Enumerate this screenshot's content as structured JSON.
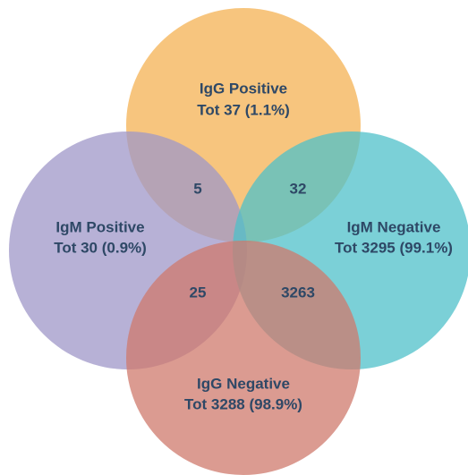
{
  "sets": [
    {
      "label": "IgG Positive",
      "total": "Tot 37 (1.1%)"
    },
    {
      "label": "IgM Positive",
      "total": "Tot 30 (0.9%)"
    },
    {
      "label": "IgM Negative",
      "total": "Tot 3295 (99.1%)"
    },
    {
      "label": "IgG Negative",
      "total": "Tot 3288 (98.9%)"
    }
  ],
  "intersections": [
    {
      "value": 5
    },
    {
      "value": 32
    },
    {
      "value": 25
    },
    {
      "value": 3263
    }
  ]
}
